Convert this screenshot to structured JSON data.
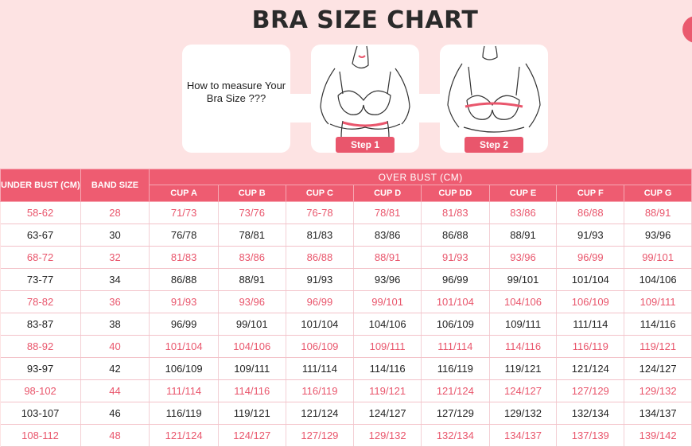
{
  "title": "BRA SIZE CHART",
  "measure_text": "How to measure Your Bra Size ???",
  "steps": [
    "Step 1",
    "Step 2"
  ],
  "colors": {
    "accent": "#ee5c71",
    "background": "#fde3e3",
    "pink_text": "#e9566c"
  },
  "table": {
    "under_bust_header": "UNDER BUST (CM)",
    "band_size_header": "BAND SIZE",
    "over_bust_header": "OVER BUST (CM)",
    "cups": [
      "CUP A",
      "CUP B",
      "CUP C",
      "CUP D",
      "CUP DD",
      "CUP E",
      "CUP F",
      "CUP G"
    ],
    "rows": [
      {
        "under": "58-62",
        "band": "28",
        "cups": [
          "71/73",
          "73/76",
          "76-78",
          "78/81",
          "81/83",
          "83/86",
          "86/88",
          "88/91"
        ]
      },
      {
        "under": "63-67",
        "band": "30",
        "cups": [
          "76/78",
          "78/81",
          "81/83",
          "83/86",
          "86/88",
          "88/91",
          "91/93",
          "93/96"
        ]
      },
      {
        "under": "68-72",
        "band": "32",
        "cups": [
          "81/83",
          "83/86",
          "86/88",
          "88/91",
          "91/93",
          "93/96",
          "96/99",
          "99/101"
        ]
      },
      {
        "under": "73-77",
        "band": "34",
        "cups": [
          "86/88",
          "88/91",
          "91/93",
          "93/96",
          "96/99",
          "99/101",
          "101/104",
          "104/106"
        ]
      },
      {
        "under": "78-82",
        "band": "36",
        "cups": [
          "91/93",
          "93/96",
          "96/99",
          "99/101",
          "101/104",
          "104/106",
          "106/109",
          "109/111"
        ]
      },
      {
        "under": "83-87",
        "band": "38",
        "cups": [
          "96/99",
          "99/101",
          "101/104",
          "104/106",
          "106/109",
          "109/111",
          "111/114",
          "114/116"
        ]
      },
      {
        "under": "88-92",
        "band": "40",
        "cups": [
          "101/104",
          "104/106",
          "106/109",
          "109/111",
          "111/114",
          "114/116",
          "116/119",
          "119/121"
        ]
      },
      {
        "under": "93-97",
        "band": "42",
        "cups": [
          "106/109",
          "109/111",
          "111/114",
          "114/116",
          "116/119",
          "119/121",
          "121/124",
          "124/127"
        ]
      },
      {
        "under": "98-102",
        "band": "44",
        "cups": [
          "111/114",
          "114/116",
          "116/119",
          "119/121",
          "121/124",
          "124/127",
          "127/129",
          "129/132"
        ]
      },
      {
        "under": "103-107",
        "band": "46",
        "cups": [
          "116/119",
          "119/121",
          "121/124",
          "124/127",
          "127/129",
          "129/132",
          "132/134",
          "134/137"
        ]
      },
      {
        "under": "108-112",
        "band": "48",
        "cups": [
          "121/124",
          "124/127",
          "127/129",
          "129/132",
          "132/134",
          "134/137",
          "137/139",
          "139/142"
        ]
      }
    ]
  }
}
